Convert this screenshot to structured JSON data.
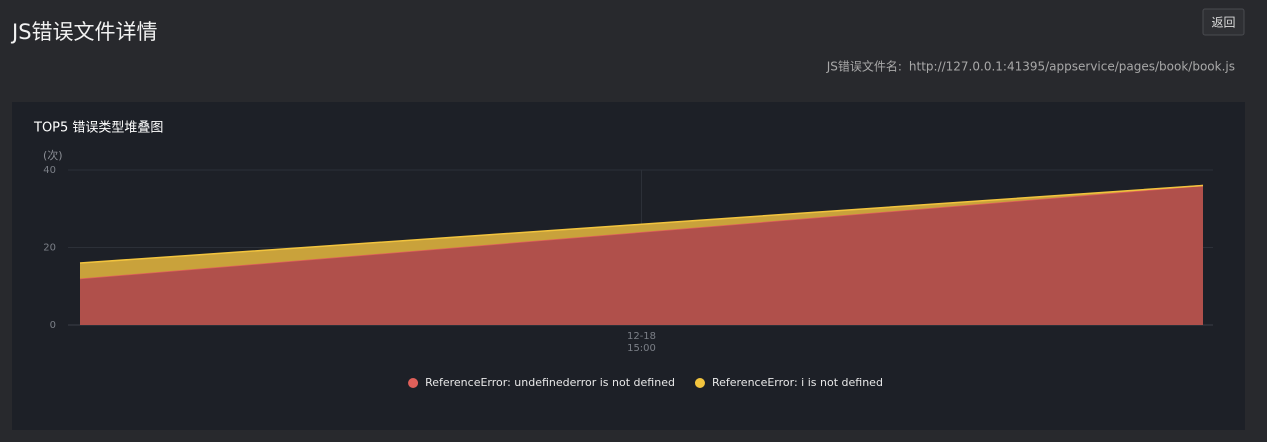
{
  "header": {
    "title": "JS错误文件详情",
    "back_button": "返回",
    "file_label": "JS错误文件名:",
    "file_url": "http://127.0.0.1:41395/appservice/pages/book/book.js"
  },
  "chart_data": {
    "type": "area",
    "stacked": true,
    "title": "TOP5 错误类型堆叠图",
    "y_label": "(次)",
    "categories": [
      null,
      "12-18 15:00",
      null
    ],
    "series": [
      {
        "name": "ReferenceError: undefinederror is not defined",
        "color": "#e0605a",
        "values": [
          12,
          24,
          36
        ]
      },
      {
        "name": "ReferenceError: i is not defined",
        "color": "#f2c43e",
        "values": [
          4,
          2,
          0
        ]
      }
    ],
    "ylim": [
      0,
      40
    ],
    "yticks": [
      0,
      20,
      40
    ],
    "grid": true,
    "legend": "bottom"
  }
}
